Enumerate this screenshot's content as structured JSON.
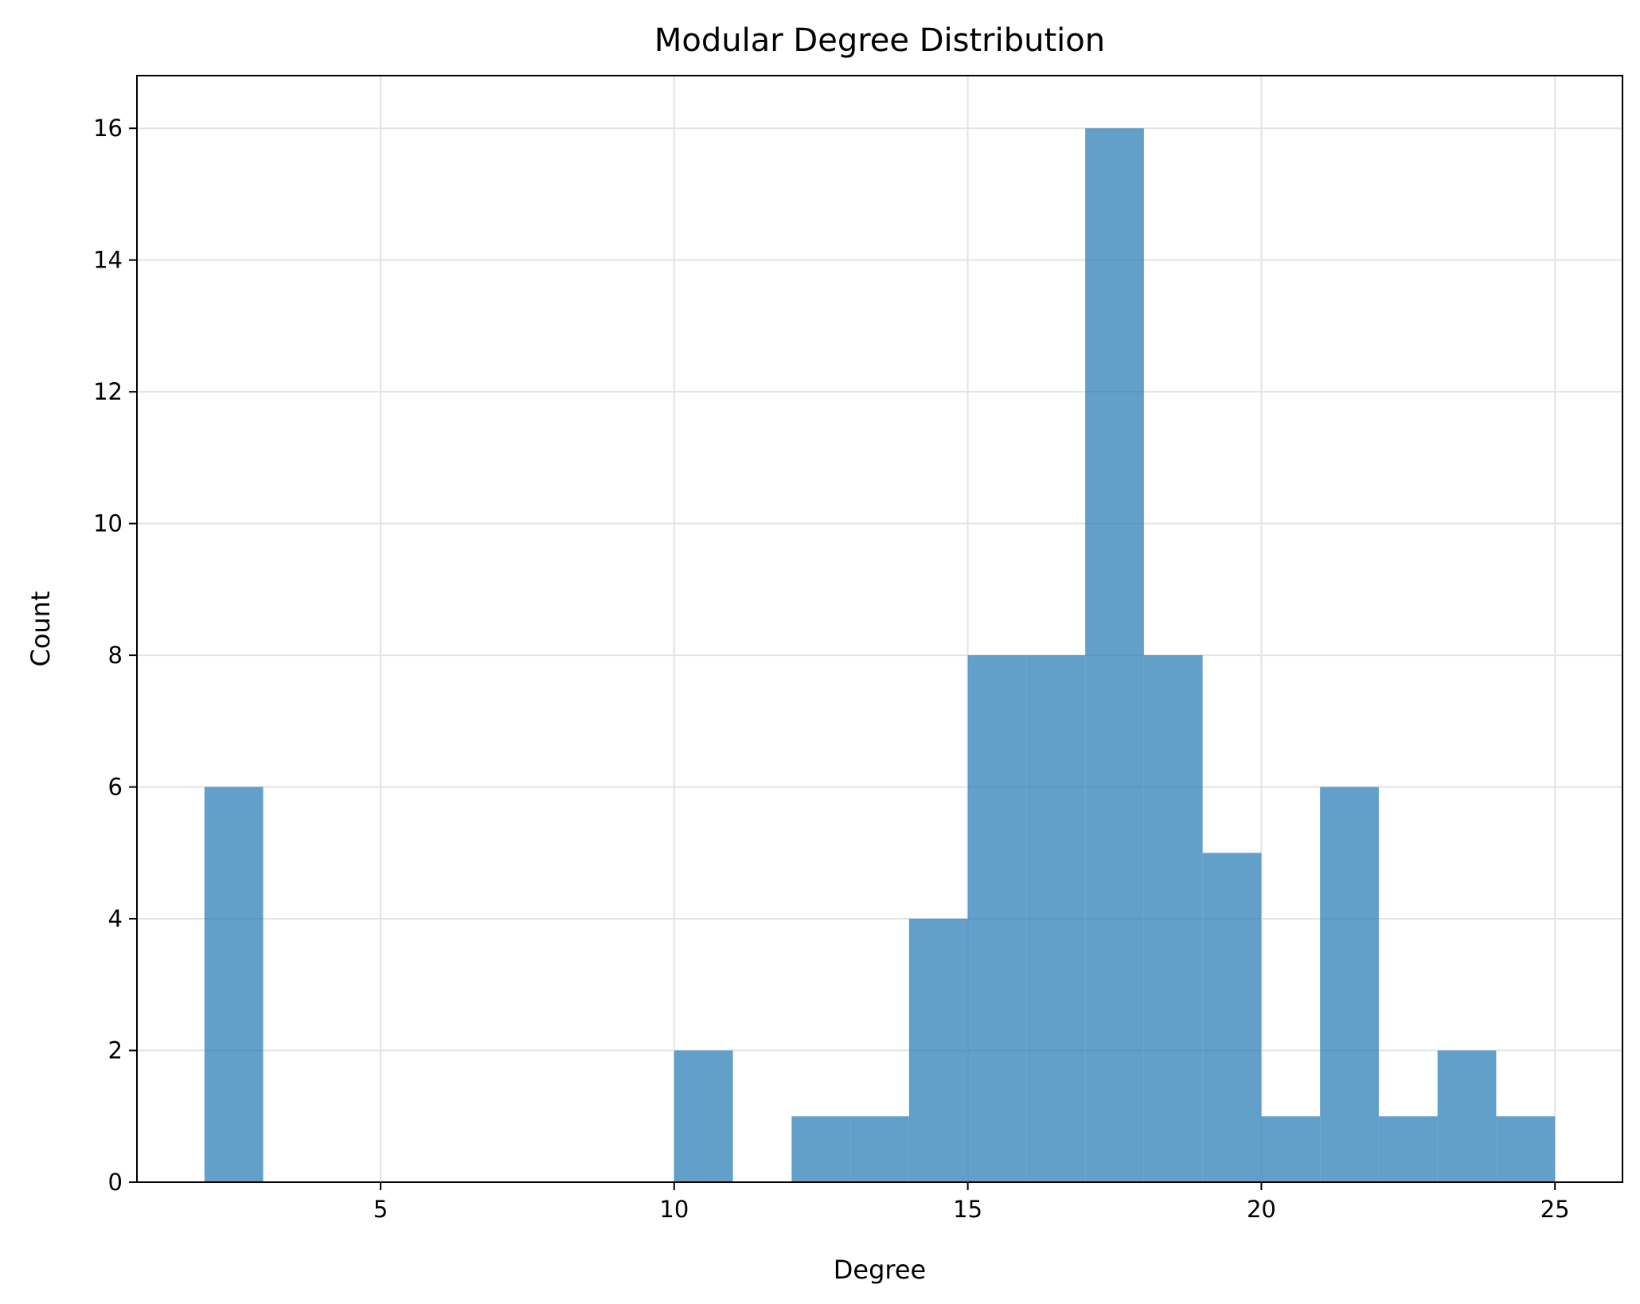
{
  "chart_data": {
    "type": "bar",
    "title": "Modular Degree Distribution",
    "xlabel": "Degree",
    "ylabel": "Count",
    "xlim": [
      0.85,
      26.15
    ],
    "ylim": [
      0,
      16.8
    ],
    "xticks": [
      5,
      10,
      15,
      20,
      25
    ],
    "yticks": [
      0,
      2,
      4,
      6,
      8,
      10,
      12,
      14,
      16
    ],
    "grid": true,
    "bar_color": "#1f77b4",
    "bar_opacity": 0.7,
    "bins": [
      {
        "x0": 2,
        "x1": 3,
        "count": 6
      },
      {
        "x0": 3,
        "x1": 4,
        "count": 0
      },
      {
        "x0": 4,
        "x1": 5,
        "count": 0
      },
      {
        "x0": 5,
        "x1": 6,
        "count": 0
      },
      {
        "x0": 6,
        "x1": 7,
        "count": 0
      },
      {
        "x0": 7,
        "x1": 8,
        "count": 0
      },
      {
        "x0": 8,
        "x1": 9,
        "count": 0
      },
      {
        "x0": 9,
        "x1": 10,
        "count": 0
      },
      {
        "x0": 10,
        "x1": 11,
        "count": 2
      },
      {
        "x0": 11,
        "x1": 12,
        "count": 0
      },
      {
        "x0": 12,
        "x1": 13,
        "count": 1
      },
      {
        "x0": 13,
        "x1": 14,
        "count": 1
      },
      {
        "x0": 14,
        "x1": 15,
        "count": 4
      },
      {
        "x0": 15,
        "x1": 16,
        "count": 8
      },
      {
        "x0": 16,
        "x1": 17,
        "count": 8
      },
      {
        "x0": 17,
        "x1": 18,
        "count": 16
      },
      {
        "x0": 18,
        "x1": 19,
        "count": 8
      },
      {
        "x0": 19,
        "x1": 20,
        "count": 5
      },
      {
        "x0": 20,
        "x1": 21,
        "count": 1
      },
      {
        "x0": 21,
        "x1": 22,
        "count": 6
      },
      {
        "x0": 22,
        "x1": 23,
        "count": 1
      },
      {
        "x0": 23,
        "x1": 24,
        "count": 2
      },
      {
        "x0": 24,
        "x1": 25,
        "count": 1
      }
    ]
  }
}
